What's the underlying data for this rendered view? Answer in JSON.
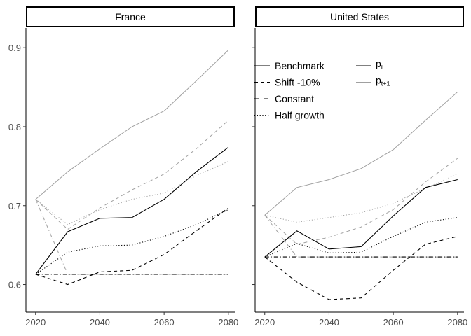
{
  "chart_data": {
    "type": "line",
    "x": [
      2020,
      2030,
      2040,
      2050,
      2060,
      2070,
      2080
    ],
    "x_ticks": [
      2020,
      2040,
      2060,
      2080
    ],
    "y_ticks": [
      0.6,
      0.7,
      0.8,
      0.9
    ],
    "xlim": [
      2017,
      2082
    ],
    "ylim": [
      0.565,
      0.925
    ],
    "legend_placement": "inside top of United States panel",
    "legend": {
      "scenarios": [
        {
          "key": "benchmark",
          "label": "Benchmark",
          "dash": "solid"
        },
        {
          "key": "shift",
          "label": "Shift -10%",
          "dash": "dashed"
        },
        {
          "key": "constant",
          "label": "Constant",
          "dash": "dotdash"
        },
        {
          "key": "half",
          "label": "Half growth",
          "dash": "dotted"
        }
      ],
      "variables": [
        {
          "key": "pt",
          "base": "p",
          "sub": "t",
          "color": "#000000"
        },
        {
          "key": "pt1",
          "base": "p",
          "sub": "t+1",
          "color": "#a0a0a0"
        }
      ]
    },
    "panels": [
      {
        "title": "France",
        "series": {
          "benchmark": {
            "pt": [
              0.613,
              0.667,
              0.684,
              0.685,
              0.708,
              0.743,
              0.774
            ],
            "pt1": [
              0.708,
              0.743,
              0.772,
              0.8,
              0.82,
              0.858,
              0.897
            ]
          },
          "shift": {
            "pt": [
              0.613,
              0.6,
              0.616,
              0.618,
              0.638,
              0.668,
              0.697
            ],
            "pt1": [
              0.708,
              0.67,
              0.697,
              0.72,
              0.74,
              0.772,
              0.808
            ]
          },
          "constant": {
            "pt": [
              0.613,
              0.613,
              0.613,
              0.613,
              0.613,
              0.613,
              0.613
            ],
            "pt1": [
              0.708,
              0.613,
              0.613,
              0.613,
              0.613,
              0.613,
              0.613
            ]
          },
          "half": {
            "pt": [
              0.613,
              0.641,
              0.649,
              0.65,
              0.661,
              0.676,
              0.695
            ],
            "pt1": [
              0.708,
              0.676,
              0.695,
              0.708,
              0.716,
              0.738,
              0.756
            ]
          }
        }
      },
      {
        "title": "United States",
        "series": {
          "benchmark": {
            "pt": [
              0.635,
              0.668,
              0.645,
              0.648,
              0.687,
              0.723,
              0.733
            ],
            "pt1": [
              0.688,
              0.723,
              0.733,
              0.747,
              0.771,
              0.808,
              0.844
            ]
          },
          "shift": {
            "pt": [
              0.635,
              0.603,
              0.581,
              0.583,
              0.618,
              0.651,
              0.661
            ],
            "pt1": [
              0.688,
              0.651,
              0.66,
              0.673,
              0.695,
              0.73,
              0.76
            ]
          },
          "constant": {
            "pt": [
              0.635,
              0.635,
              0.635,
              0.635,
              0.635,
              0.635,
              0.635
            ],
            "pt1": [
              0.688,
              0.635,
              0.635,
              0.635,
              0.635,
              0.635,
              0.635
            ]
          },
          "half": {
            "pt": [
              0.635,
              0.652,
              0.64,
              0.641,
              0.661,
              0.679,
              0.685
            ],
            "pt1": [
              0.688,
              0.679,
              0.685,
              0.691,
              0.703,
              0.722,
              0.74
            ]
          }
        }
      }
    ]
  }
}
